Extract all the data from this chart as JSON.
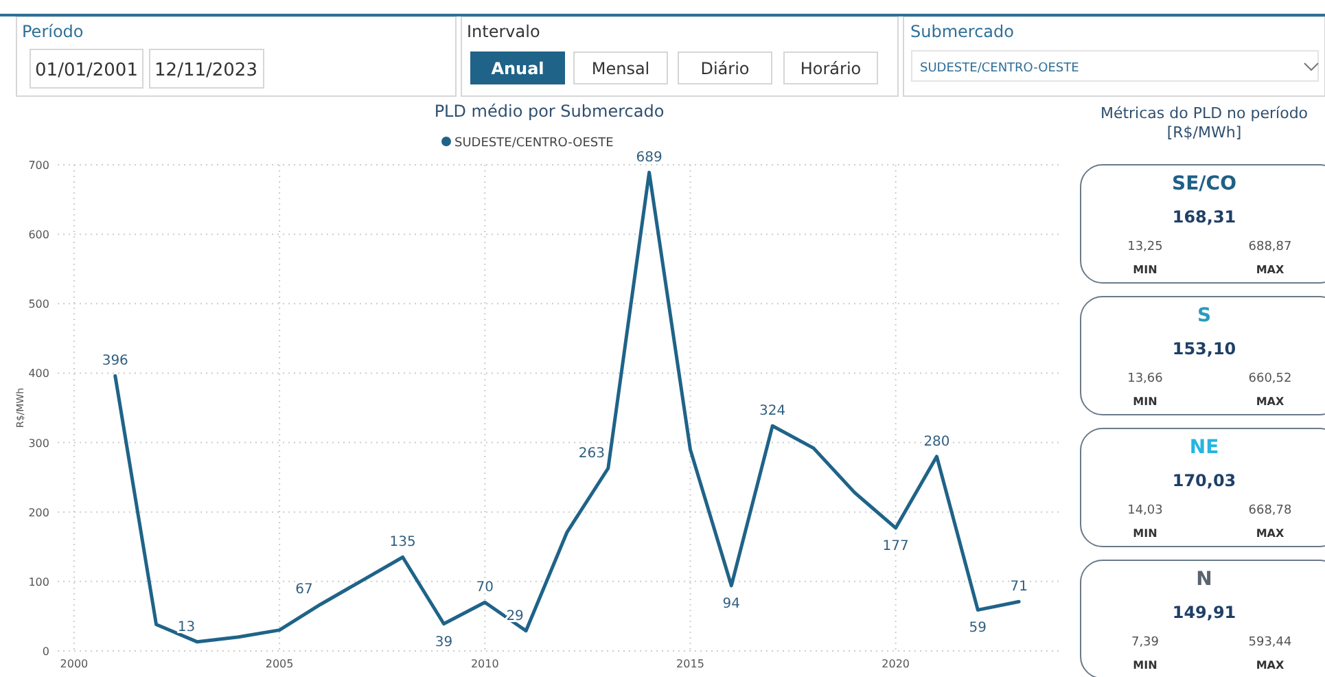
{
  "chart_data": [
    {
      "type": "other",
      "annotations": [
        "Período",
        "01/01/2001",
        "12/11/2023",
        "Intervalo",
        "Anual",
        "Mensal",
        "Diário",
        "Horário",
        "Submercado",
        "SUDESTE/CENTRO-OESTE"
      ]
    },
    {
      "type": "line",
      "title": "PLD médio por Submercado",
      "ylabel": "R$/MWh",
      "x": [
        2001,
        2002,
        2003,
        2004,
        2005,
        2006,
        2007,
        2008,
        2009,
        2010,
        2011,
        2012,
        2013,
        2014,
        2015,
        2016,
        2017,
        2018,
        2019,
        2020,
        2021,
        2022,
        2023
      ],
      "series": [
        {
          "name": "SUDESTE/CENTRO-OESTE",
          "color": "#1f6388",
          "values": [
            396,
            38,
            13,
            20,
            30,
            67,
            101,
            135,
            39,
            70,
            29,
            171,
            263,
            689,
            290,
            94,
            324,
            292,
            228,
            177,
            280,
            59,
            71
          ],
          "value_labels": [
            "396",
            null,
            "13",
            null,
            null,
            "67",
            null,
            "135",
            "39",
            "70",
            "29",
            null,
            "263",
            "689",
            null,
            "94",
            "324",
            null,
            null,
            "177",
            "280",
            "59",
            "71"
          ]
        }
      ],
      "xlim": [
        1999.6,
        2024
      ],
      "xticks": [
        2000,
        2005,
        2010,
        2015,
        2020
      ],
      "ylim": [
        0,
        700
      ],
      "yticks": [
        0,
        100,
        200,
        300,
        400,
        500,
        600,
        700
      ],
      "grid": true,
      "legend": "top",
      "marker": "none",
      "line_style": "solid"
    },
    {
      "type": "other",
      "title": "Métricas do PLD no período [R$/MWh]",
      "categories": [
        "SE/CO",
        "S",
        "NE",
        "N"
      ],
      "colors": [
        "#1f5f85",
        "#2a9bc0",
        "#26b5e0",
        "#5a6470"
      ],
      "series": [
        {
          "color": "#1f3f66",
          "values": [
            168.31,
            153.1,
            170.03,
            149.91
          ],
          "value_labels": [
            "168,31",
            "153,10",
            "170,03",
            "149,91"
          ]
        },
        {
          "name": "MIN",
          "color": "#555555",
          "values": [
            13.25,
            13.66,
            14.03,
            7.39
          ],
          "value_labels": [
            "13,25",
            "13,66",
            "14,03",
            "7,39"
          ]
        },
        {
          "name": "MAX",
          "color": "#555555",
          "values": [
            688.87,
            660.52,
            668.78,
            593.44
          ],
          "value_labels": [
            "688,87",
            "660,52",
            "668,78",
            "593,44"
          ]
        }
      ]
    }
  ]
}
